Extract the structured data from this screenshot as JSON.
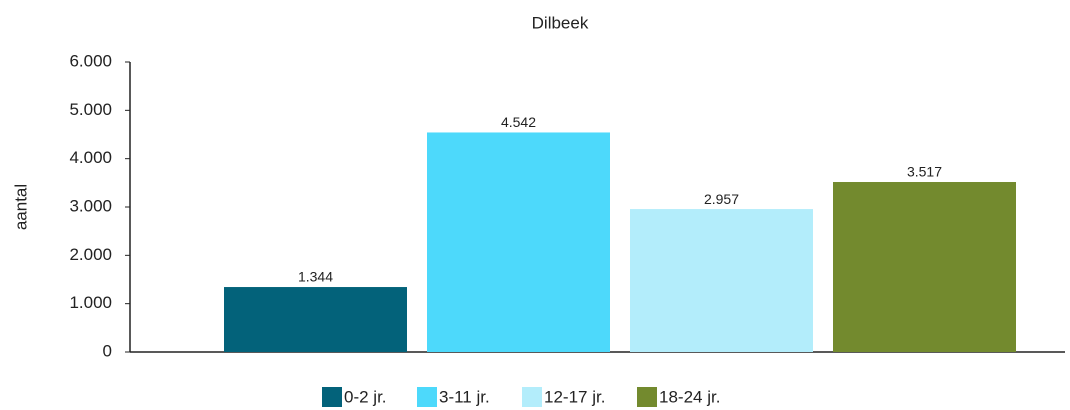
{
  "chart_data": {
    "type": "bar",
    "subtitle": "Dilbeek",
    "y_label": "aantal",
    "categories": [
      null
    ],
    "series": [
      {
        "name": "0-2 jr.",
        "color": "#03627a",
        "values": [
          1344
        ],
        "value_labels": [
          "1.344"
        ]
      },
      {
        "name": "3-11 jr.",
        "color": "#4dd9fb",
        "values": [
          4542
        ],
        "value_labels": [
          "4.542"
        ]
      },
      {
        "name": "12-17 jr.",
        "color": "#b3edfb",
        "values": [
          2957
        ],
        "value_labels": [
          "2.957"
        ]
      },
      {
        "name": "18-24 jr.",
        "color": "#738a2e",
        "values": [
          3517
        ],
        "value_labels": [
          "3.517"
        ]
      }
    ],
    "ylim": [
      0,
      6000
    ],
    "yticks": [
      0,
      {
        "value": 1000,
        "label": "1.000"
      },
      {
        "value": 2000,
        "label": "2.000"
      },
      {
        "value": 3000,
        "label": "3.000"
      },
      {
        "value": 4000,
        "label": "4.000"
      },
      {
        "value": 5000,
        "label": "5.000"
      },
      {
        "value": 6000,
        "label": "6.000"
      }
    ],
    "grid": false,
    "legend": "bottom"
  }
}
